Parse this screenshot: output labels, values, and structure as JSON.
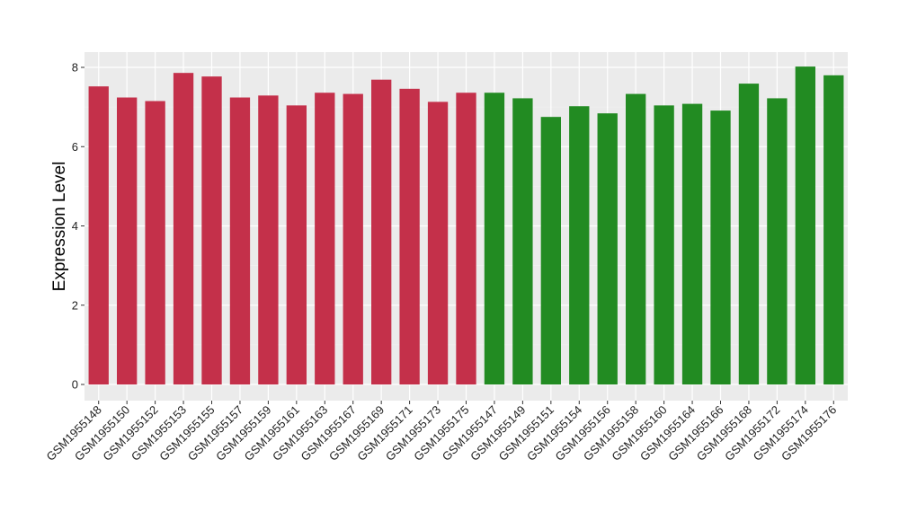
{
  "chart_data": {
    "type": "bar",
    "title": "",
    "xlabel": "",
    "ylabel": "Expression Level",
    "ylim": [
      0,
      8.2
    ],
    "yticks": [
      0,
      2,
      4,
      6,
      8
    ],
    "grid": true,
    "legend": "none",
    "background": "#ebebeb",
    "categories": [
      "GSM1955148",
      "GSM1955150",
      "GSM1955152",
      "GSM1955153",
      "GSM1955155",
      "GSM1955157",
      "GSM1955159",
      "GSM1955161",
      "GSM1955163",
      "GSM1955167",
      "GSM1955169",
      "GSM1955171",
      "GSM1955173",
      "GSM1955175",
      "GSM1955147",
      "GSM1955149",
      "GSM1955151",
      "GSM1955154",
      "GSM1955156",
      "GSM1955158",
      "GSM1955160",
      "GSM1955164",
      "GSM1955166",
      "GSM1955168",
      "GSM1955172",
      "GSM1955174",
      "GSM1955176"
    ],
    "values": [
      7.52,
      7.24,
      7.15,
      7.86,
      7.77,
      7.24,
      7.29,
      7.04,
      7.36,
      7.33,
      7.69,
      7.46,
      7.13,
      7.36,
      7.36,
      7.22,
      6.75,
      7.02,
      6.84,
      7.33,
      7.04,
      7.08,
      6.91,
      7.59,
      7.22,
      8.02,
      7.8
    ],
    "groups": [
      "red",
      "red",
      "red",
      "red",
      "red",
      "red",
      "red",
      "red",
      "red",
      "red",
      "red",
      "red",
      "red",
      "red",
      "green",
      "green",
      "green",
      "green",
      "green",
      "green",
      "green",
      "green",
      "green",
      "green",
      "green",
      "green",
      "green"
    ],
    "colors": {
      "red": "#c4304a",
      "green": "#228b22"
    }
  }
}
